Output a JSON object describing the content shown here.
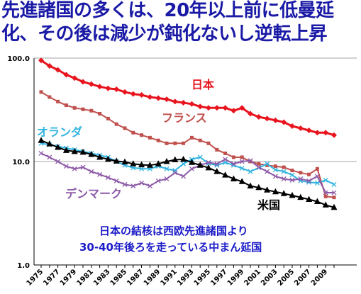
{
  "title_lines": [
    "先進諸国の多くは、20年以上前に低曼延",
    "化、その後は減少が鈍化ないし逆転上昇"
  ],
  "annotation_lines": [
    "日本の結核は西欧先進諸国より",
    "30-40年後ろを走っている中まん延国"
  ],
  "colors": {
    "japan": "#e8141e",
    "france": "#c0504d",
    "netherlands": "#31b4e0",
    "denmark": "#8c5aa8",
    "usa": "#000000",
    "title": "#1a1aa6",
    "annotation": "#1a1ac8"
  },
  "chart_data": {
    "type": "line",
    "y_scale": "log",
    "ylim": [
      1.0,
      100.0
    ],
    "y_ticks": [
      "1.0",
      "10.0",
      "100.0"
    ],
    "x_ticks": [
      "1975",
      "1977",
      "1979",
      "1981",
      "1983",
      "1985",
      "1987",
      "1989",
      "1991",
      "1993",
      "1995",
      "1997",
      "1999",
      "2001",
      "2003",
      "2005",
      "2007",
      "2009"
    ],
    "grid": "horizontal",
    "legend": "inline labels",
    "x": [
      1975,
      1976,
      1977,
      1978,
      1979,
      1980,
      1981,
      1982,
      1983,
      1984,
      1985,
      1986,
      1987,
      1988,
      1989,
      1990,
      1991,
      1992,
      1993,
      1994,
      1995,
      1996,
      1997,
      1998,
      1999,
      2000,
      2001,
      2002,
      2003,
      2004,
      2005,
      2006,
      2007,
      2008,
      2009,
      2010
    ],
    "series": [
      {
        "name": "日本",
        "key": "japan",
        "marker": "diamond",
        "values": [
          95,
          84,
          77,
          69,
          64,
          59,
          56,
          53,
          51,
          50,
          47,
          45,
          44,
          42,
          41,
          40,
          38,
          37,
          36,
          34,
          33,
          33,
          33,
          31,
          33,
          29,
          27,
          26,
          25,
          24,
          22,
          21,
          20,
          19,
          19,
          18
        ]
      },
      {
        "name": "フランス",
        "key": "france",
        "marker": "square",
        "values": [
          47,
          42,
          38,
          35,
          33,
          32,
          31,
          29,
          26,
          23,
          21,
          19,
          18,
          17,
          16,
          15,
          15,
          15,
          17,
          16,
          15,
          13,
          12,
          11,
          11,
          10,
          9.5,
          9.2,
          9,
          8.8,
          8.2,
          7.8,
          7.5,
          8.5,
          4.6,
          4.5
        ]
      },
      {
        "name": "オランダ",
        "key": "netherlands",
        "marker": "x",
        "values": [
          15,
          14.5,
          14,
          13.5,
          13,
          12.5,
          12,
          11.5,
          11,
          10,
          9.2,
          8.7,
          8.5,
          8.5,
          9,
          8.5,
          8.2,
          9.5,
          10.5,
          11,
          9.6,
          9.2,
          9.8,
          9.2,
          8.6,
          8,
          8.7,
          9.5,
          8.3,
          8,
          7.4,
          6.5,
          6.3,
          6.2,
          6.6,
          6
        ]
      },
      {
        "name": "デンマーク",
        "key": "denmark",
        "marker": "x",
        "values": [
          12,
          11,
          10,
          9,
          8.5,
          8.8,
          8,
          7.5,
          7,
          6.5,
          6,
          5.8,
          6.2,
          5.8,
          6.5,
          6.8,
          7.8,
          7.2,
          8.5,
          9.2,
          9.8,
          9.5,
          10.5,
          9.5,
          10,
          10.2,
          8.8,
          8,
          7.2,
          6.8,
          6.6,
          6.8,
          6.5,
          7.2,
          5,
          5
        ]
      },
      {
        "name": "米国",
        "key": "usa",
        "marker": "triangle",
        "values": [
          16,
          14.8,
          13.7,
          12.8,
          12.5,
          12.3,
          11.7,
          11,
          10.5,
          10.1,
          9.9,
          9.5,
          9.3,
          9.2,
          9.5,
          10,
          10.4,
          10.5,
          9.8,
          9.2,
          8.7,
          8,
          7.4,
          6.8,
          6.4,
          5.8,
          5.6,
          5.3,
          5.1,
          4.9,
          4.7,
          4.5,
          4.3,
          4.1,
          3.8,
          3.6
        ]
      }
    ]
  }
}
